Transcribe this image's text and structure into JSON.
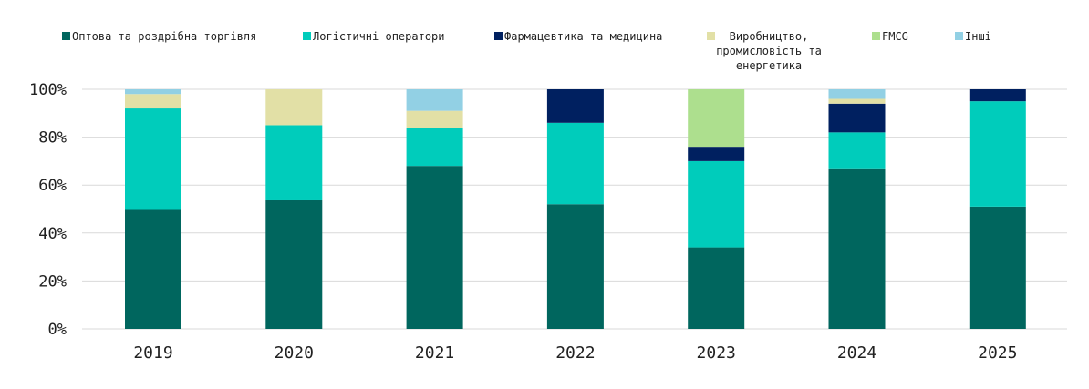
{
  "chart_data": {
    "type": "bar",
    "stacked": true,
    "categories": [
      "2019",
      "2020",
      "2021",
      "2022",
      "2023",
      "2024",
      "2025"
    ],
    "ylim": [
      0,
      100
    ],
    "yticks": [
      "0%",
      "20%",
      "40%",
      "60%",
      "80%",
      "100%"
    ],
    "grid": true,
    "legend_position": "top",
    "series": [
      {
        "name": "Оптова та роздрібна торгівля",
        "color": "#00665e",
        "values": [
          50,
          54,
          68,
          52,
          34,
          67,
          51
        ]
      },
      {
        "name": "Логістичні оператори",
        "color": "#00ccbb",
        "values": [
          42,
          31,
          16,
          34,
          36,
          15,
          44
        ]
      },
      {
        "name": "Фармацевтика та медицина",
        "color": "#002060",
        "values": [
          0,
          0,
          0,
          14,
          6,
          12,
          5
        ]
      },
      {
        "name": "Виробництво, промисловість та енергетика",
        "color": "#e2e0a6",
        "values": [
          6,
          15,
          7,
          0,
          0,
          2,
          0
        ]
      },
      {
        "name": "FMCG",
        "color": "#addf8e",
        "values": [
          0,
          0,
          0,
          0,
          24,
          0,
          0
        ]
      },
      {
        "name": "Інші",
        "color": "#92d0e4",
        "values": [
          2,
          0,
          9,
          0,
          0,
          4,
          0
        ]
      }
    ],
    "legend_lines": [
      [
        "Оптова та роздрібна торгівля"
      ],
      [
        "Логістичні оператори"
      ],
      [
        "Фармацевтика та медицина"
      ],
      [
        "Виробництво,",
        "промисловість та",
        "енергетика"
      ],
      [
        "FMCG"
      ],
      [
        "Інші"
      ]
    ]
  }
}
